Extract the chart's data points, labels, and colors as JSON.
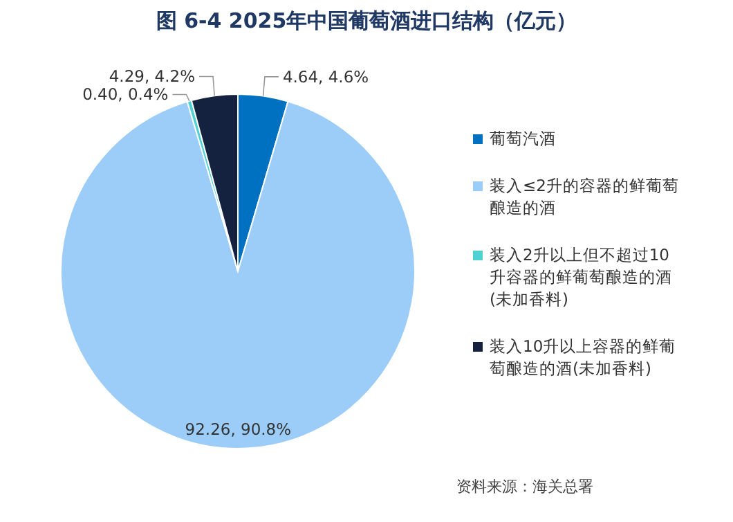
{
  "chart_data": {
    "type": "pie",
    "title": "图 6-4 2025年中国葡萄酒进口结构（亿元）",
    "categories": [
      "葡萄汽酒",
      "装入≤2升的容器的鲜葡萄酿造的酒",
      "装入2升以上但不超过10升容器的鲜葡萄酿造的酒(未加香料)",
      "装入10升以上容器的鲜葡萄酿造的酒(未加香料)"
    ],
    "values": [
      4.64,
      92.26,
      0.4,
      4.29
    ],
    "value_labels": [
      "4.64, 4.6%",
      "92.26, 90.8%",
      "0.40, 0.4%",
      "4.29, 4.2%"
    ],
    "colors": [
      "#0070c0",
      "#9ccdf8",
      "#4fd1d4",
      "#14223f"
    ],
    "legend": "right",
    "annotations": [
      "资料来源：海关总署"
    ]
  }
}
